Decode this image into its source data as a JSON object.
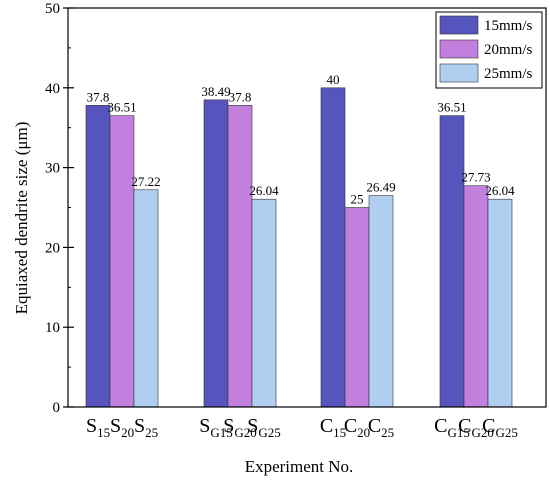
{
  "chart_data": {
    "type": "bar",
    "title": "",
    "xlabel": "Experiment No.",
    "ylabel": "Equiaxed dendrite size (μm)",
    "ylim": [
      0,
      50
    ],
    "yticks": [
      "0",
      "10",
      "20",
      "30",
      "40",
      "50"
    ],
    "groups": [
      {
        "labels": [
          {
            "base": "S",
            "sub": "15"
          },
          {
            "base": "S",
            "sub": "20"
          },
          {
            "base": "S",
            "sub": "25"
          }
        ]
      },
      {
        "labels": [
          {
            "base": "S",
            "sub": "G15"
          },
          {
            "base": "S",
            "sub": "G20"
          },
          {
            "base": "S",
            "sub": "G25"
          }
        ]
      },
      {
        "labels": [
          {
            "base": "C",
            "sub": "15"
          },
          {
            "base": "C",
            "sub": "20"
          },
          {
            "base": "C",
            "sub": "25"
          }
        ]
      },
      {
        "labels": [
          {
            "base": "C",
            "sub": "G15"
          },
          {
            "base": "C",
            "sub": "G20"
          },
          {
            "base": "C",
            "sub": "G25"
          }
        ]
      }
    ],
    "series": [
      {
        "name": "15mm/s",
        "color": "#5655bd",
        "values": [
          37.8,
          38.49,
          40,
          36.51
        ],
        "data_labels": [
          "37.8",
          "38.49",
          "40",
          "36.51"
        ]
      },
      {
        "name": "20mm/s",
        "color": "#c27fde",
        "values": [
          36.51,
          37.8,
          25,
          27.73
        ],
        "data_labels": [
          "36.51",
          "37.8",
          "25",
          "27.73"
        ]
      },
      {
        "name": "25mm/s",
        "color": "#b0cff0",
        "values": [
          27.22,
          26.04,
          26.49,
          26.04
        ],
        "data_labels": [
          "27.22",
          "26.04",
          "26.49",
          "26.04"
        ]
      }
    ],
    "legend_position": "top-right",
    "grid": false
  }
}
